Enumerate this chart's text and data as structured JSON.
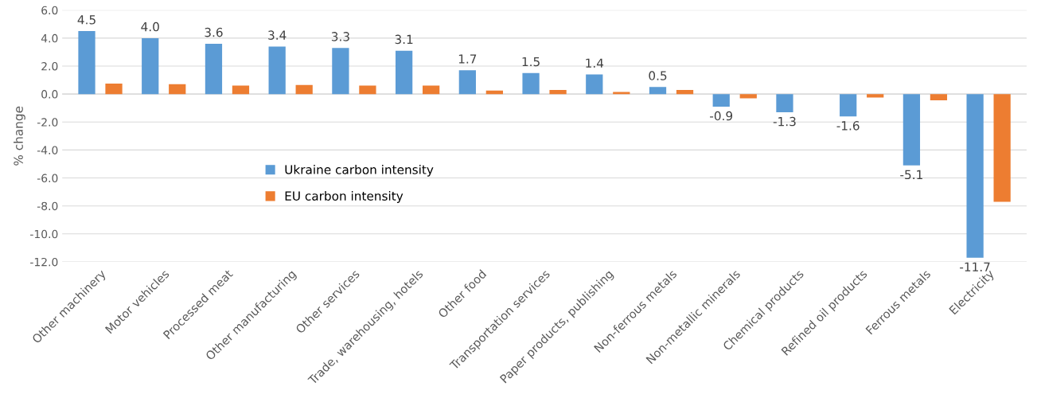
{
  "chart_data": {
    "type": "bar",
    "ylabel": "% change",
    "categories": [
      "Other machinery",
      "Motor vehicles",
      "Processed meat",
      "Other manufacturing",
      "Other services",
      "Trade, warehousing, hotels",
      "Other food",
      "Transportation services",
      "Paper products, publishing",
      "Non-ferrous metals",
      "Non-metallic minerals",
      "Chemical products",
      "Refined oil products",
      "Ferrous metals",
      "Electricity"
    ],
    "series": [
      {
        "name": "Ukraine carbon intensity",
        "color": "#5b9bd5",
        "values": [
          4.5,
          4.0,
          3.6,
          3.4,
          3.3,
          3.1,
          1.7,
          1.5,
          1.4,
          0.5,
          -0.9,
          -1.3,
          -1.6,
          -5.1,
          -11.7
        ],
        "value_labels": [
          "4.5",
          "4.0",
          "3.6",
          "3.4",
          "3.3",
          "3.1",
          "1.7",
          "1.5",
          "1.4",
          "0.5",
          "-0.9",
          "-1.3",
          "-1.6",
          "-5.1",
          "-11.7"
        ]
      },
      {
        "name": "EU carbon intensity",
        "color": "#ed7d31",
        "values": [
          0.75,
          0.7,
          0.6,
          0.65,
          0.6,
          0.6,
          0.25,
          0.3,
          0.15,
          0.3,
          -0.3,
          0.0,
          -0.25,
          -0.45,
          -7.7
        ]
      }
    ],
    "ylim": [
      -12,
      6
    ],
    "yticks": [
      {
        "value": -12,
        "label": "-12.0"
      },
      {
        "value": -10,
        "label": "-10.0"
      },
      {
        "value": -8,
        "label": "-8.0"
      },
      {
        "value": -6,
        "label": "-6.0"
      },
      {
        "value": -4,
        "label": "-4.0"
      },
      {
        "value": -2,
        "label": "-2.0"
      },
      {
        "value": 0,
        "label": "0.0"
      },
      {
        "value": 2,
        "label": "2.0"
      },
      {
        "value": 4,
        "label": "4.0"
      },
      {
        "value": 6,
        "label": "6.0"
      }
    ],
    "grid": "y",
    "legend": "center left"
  }
}
